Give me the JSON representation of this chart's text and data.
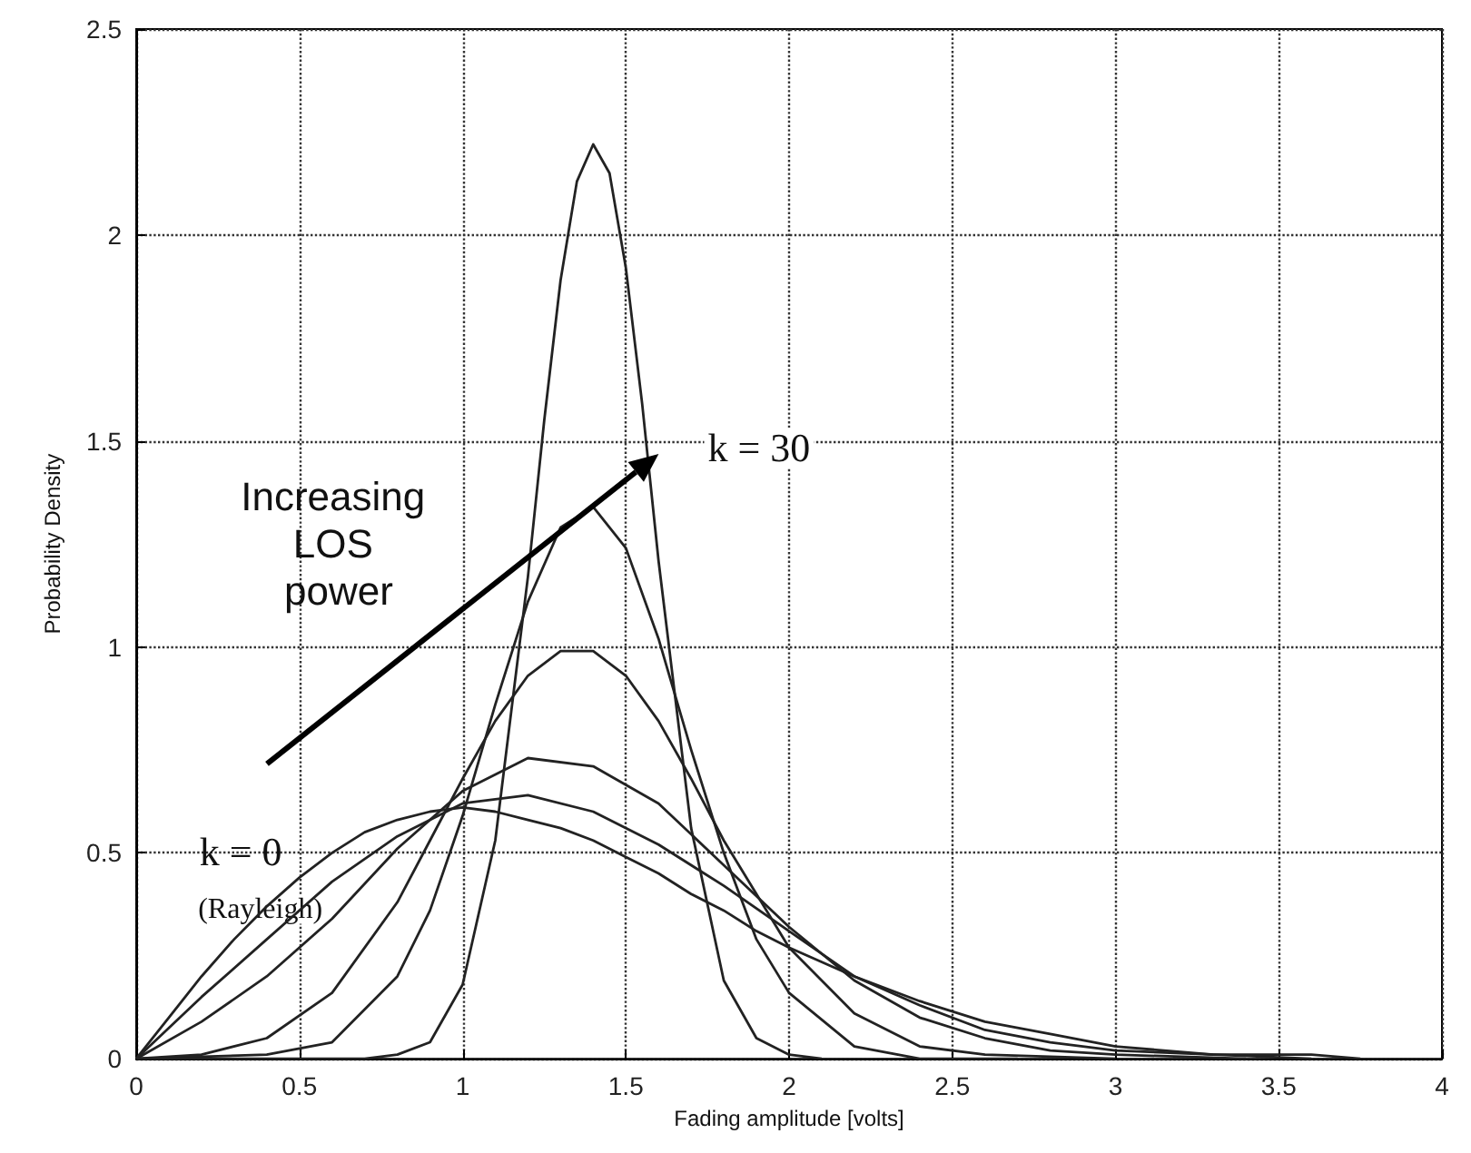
{
  "chart_data": {
    "type": "line",
    "xlabel": "Fading amplitude [volts]",
    "ylabel": "Probability Density",
    "xlim": [
      0,
      4
    ],
    "ylim": [
      0,
      2.5
    ],
    "xticks": [
      0,
      0.5,
      1,
      1.5,
      2,
      2.5,
      3,
      3.5,
      4
    ],
    "yticks": [
      0,
      0.5,
      1,
      1.5,
      2,
      2.5
    ],
    "grid": true,
    "marker": "none",
    "line_style": "solid",
    "annotations": [
      "Increasing LOS power",
      "k = 30",
      "k = 0",
      "(Rayleigh)"
    ],
    "series": [
      {
        "color": "#222222",
        "x": [
          0,
          0.1,
          0.2,
          0.3,
          0.4,
          0.5,
          0.6,
          0.7,
          0.8,
          0.9,
          1,
          1.1,
          1.2,
          1.3,
          1.4,
          1.5,
          1.6,
          1.7,
          1.8,
          1.9,
          2,
          2.2,
          2.4,
          2.6,
          2.8,
          3,
          3.3,
          3.6,
          3.75
        ],
        "values": [
          0,
          0.1,
          0.2,
          0.29,
          0.37,
          0.44,
          0.5,
          0.55,
          0.58,
          0.6,
          0.61,
          0.6,
          0.58,
          0.56,
          0.53,
          0.49,
          0.45,
          0.4,
          0.36,
          0.31,
          0.27,
          0.2,
          0.14,
          0.09,
          0.06,
          0.03,
          0.01,
          0.01,
          0
        ]
      },
      {
        "color": "#222222",
        "x": [
          0,
          0.2,
          0.4,
          0.6,
          0.8,
          1,
          1.2,
          1.4,
          1.6,
          1.8,
          2,
          2.2,
          2.4,
          2.6,
          2.8,
          3,
          3.3,
          3.6
        ],
        "values": [
          0,
          0.15,
          0.29,
          0.43,
          0.54,
          0.62,
          0.64,
          0.6,
          0.52,
          0.42,
          0.31,
          0.2,
          0.13,
          0.07,
          0.04,
          0.02,
          0.01,
          0
        ]
      },
      {
        "color": "#222222",
        "x": [
          0,
          0.2,
          0.4,
          0.6,
          0.8,
          1,
          1.2,
          1.4,
          1.6,
          1.8,
          2,
          2.2,
          2.4,
          2.6,
          2.8,
          3,
          3.4
        ],
        "values": [
          0,
          0.09,
          0.2,
          0.34,
          0.51,
          0.65,
          0.73,
          0.71,
          0.62,
          0.47,
          0.32,
          0.19,
          0.1,
          0.05,
          0.02,
          0.01,
          0
        ]
      },
      {
        "color": "#222222",
        "x": [
          0,
          0.2,
          0.4,
          0.6,
          0.8,
          0.9,
          1,
          1.1,
          1.2,
          1.3,
          1.4,
          1.5,
          1.6,
          1.7,
          1.8,
          2,
          2.2,
          2.4,
          2.6,
          3
        ],
        "values": [
          0,
          0.01,
          0.05,
          0.16,
          0.38,
          0.53,
          0.68,
          0.82,
          0.93,
          0.99,
          0.99,
          0.93,
          0.82,
          0.68,
          0.53,
          0.27,
          0.11,
          0.03,
          0.01,
          0
        ]
      },
      {
        "color": "#222222",
        "x": [
          0,
          0.4,
          0.6,
          0.8,
          0.9,
          1,
          1.1,
          1.2,
          1.3,
          1.4,
          1.5,
          1.6,
          1.7,
          1.8,
          1.9,
          2,
          2.2,
          2.4,
          2.7
        ],
        "values": [
          0,
          0.01,
          0.04,
          0.2,
          0.36,
          0.59,
          0.86,
          1.11,
          1.29,
          1.34,
          1.24,
          1.02,
          0.75,
          0.5,
          0.29,
          0.16,
          0.03,
          0,
          0
        ]
      },
      {
        "color": "#222222",
        "x": [
          0,
          0.7,
          0.8,
          0.9,
          1,
          1.1,
          1.2,
          1.25,
          1.3,
          1.35,
          1.4,
          1.45,
          1.5,
          1.55,
          1.6,
          1.7,
          1.8,
          1.9,
          2,
          2.1
        ],
        "values": [
          0,
          0,
          0.01,
          0.04,
          0.18,
          0.53,
          1.17,
          1.55,
          1.89,
          2.13,
          2.22,
          2.15,
          1.92,
          1.59,
          1.21,
          0.56,
          0.19,
          0.05,
          0.01,
          0
        ]
      }
    ]
  }
}
